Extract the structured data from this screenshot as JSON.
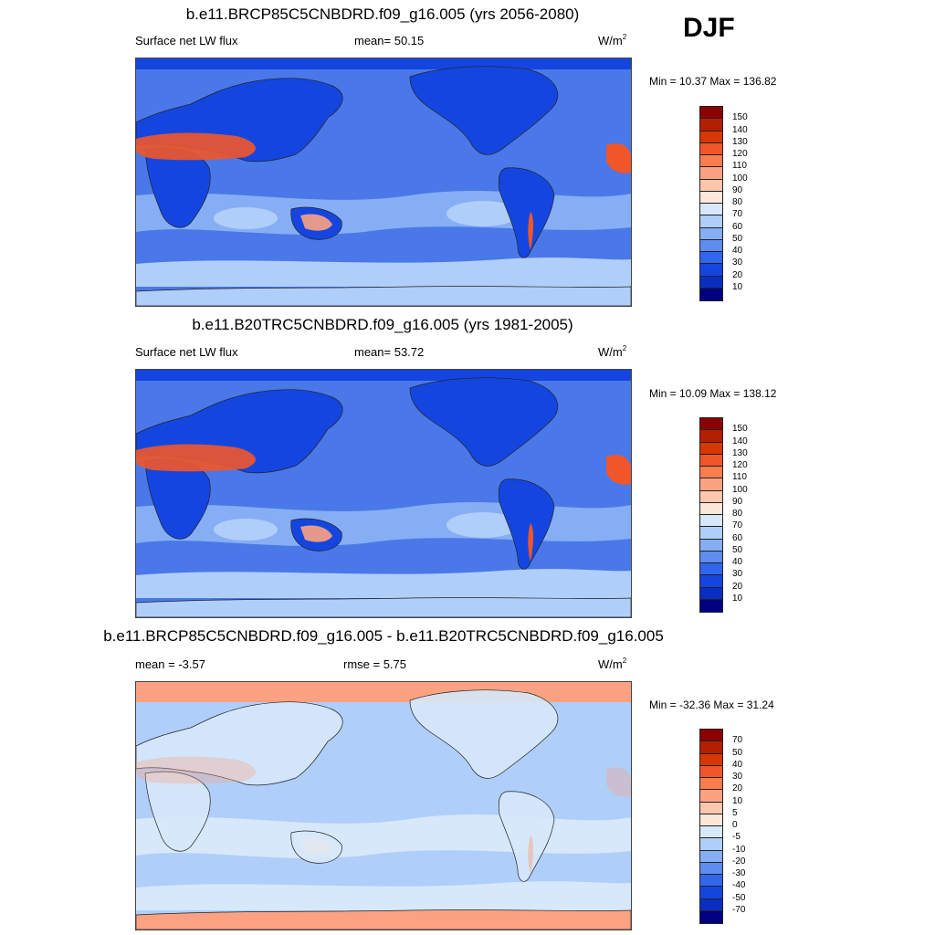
{
  "season": "DJF",
  "panels": [
    {
      "title": "b.e11.BRCP85C5CNBDRD.f09_g16.005 (yrs 2056-2080)",
      "left_label": "Surface net LW flux",
      "center_label": "mean=  50.15",
      "units": "W/m",
      "units_sup": "2",
      "minmax": "Min =  10.37 Max = 136.82",
      "colorbar_labels": [
        "150",
        "140",
        "130",
        "120",
        "110",
        "100",
        "90",
        "80",
        "70",
        "60",
        "50",
        "40",
        "30",
        "20",
        "10"
      ],
      "colorbar_colors": [
        "#8b0000",
        "#b41e00",
        "#d63800",
        "#f0562a",
        "#fb7d4e",
        "#fca282",
        "#fdc7ad",
        "#fde7d9",
        "#d6e8fa",
        "#b0cefa",
        "#86aef4",
        "#5e8cf0",
        "#3366ee",
        "#1446df",
        "#0a2dc2",
        "#000080"
      ]
    },
    {
      "title": "b.e11.B20TRC5CNBDRD.f09_g16.005 (yrs 1981-2005)",
      "left_label": "Surface net LW flux",
      "center_label": "mean=  53.72",
      "units": "W/m",
      "units_sup": "2",
      "minmax": "Min =  10.09 Max = 138.12",
      "colorbar_labels": [
        "150",
        "140",
        "130",
        "120",
        "110",
        "100",
        "90",
        "80",
        "70",
        "60",
        "50",
        "40",
        "30",
        "20",
        "10"
      ],
      "colorbar_colors": [
        "#8b0000",
        "#b41e00",
        "#d63800",
        "#f0562a",
        "#fb7d4e",
        "#fca282",
        "#fdc7ad",
        "#fde7d9",
        "#d6e8fa",
        "#b0cefa",
        "#86aef4",
        "#5e8cf0",
        "#3366ee",
        "#1446df",
        "#0a2dc2",
        "#000080"
      ]
    },
    {
      "title": "b.e11.BRCP85C5CNBDRD.f09_g16.005 - b.e11.B20TRC5CNBDRD.f09_g16.005",
      "left_label": "mean =  -3.57",
      "center_label": "rmse =   5.75",
      "units": "W/m",
      "units_sup": "2",
      "minmax": "Min = -32.36 Max =  31.24",
      "colorbar_labels": [
        "70",
        "50",
        "40",
        "30",
        "20",
        "10",
        "5",
        "0",
        "-5",
        "-10",
        "-20",
        "-30",
        "-40",
        "-50",
        "-70"
      ],
      "colorbar_colors": [
        "#8b0000",
        "#b41e00",
        "#d63800",
        "#f0562a",
        "#fb7d4e",
        "#fca282",
        "#fdc7ad",
        "#fde7d9",
        "#d6e8fa",
        "#b0cefa",
        "#86aef4",
        "#5e8cf0",
        "#3366ee",
        "#1446df",
        "#0a2dc2",
        "#000080"
      ]
    }
  ]
}
